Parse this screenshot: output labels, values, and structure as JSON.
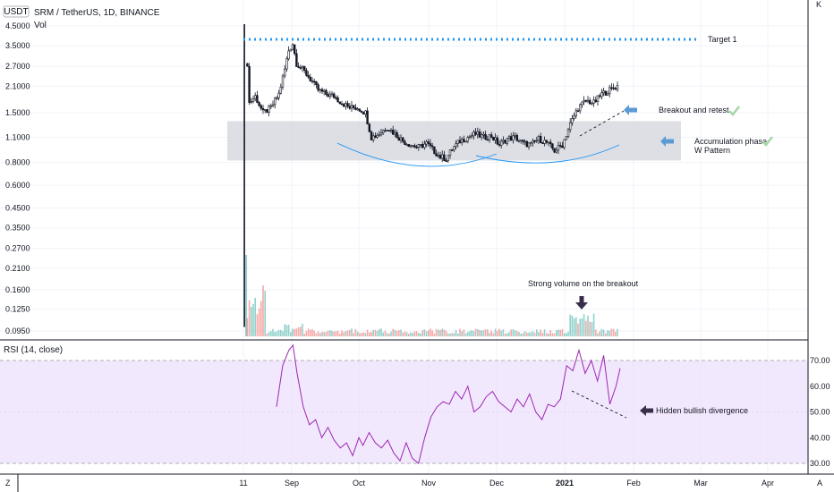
{
  "header": {
    "currency_badge": "USDT",
    "symbol_title": "SRM / TetherUS, 1D, BINANCE",
    "volume_label": "Vol",
    "rsi_label": "RSI (14, close)",
    "corner_left": "Z",
    "corner_right": "A",
    "top_right_glyph": "K"
  },
  "colors": {
    "up": "#26a69a",
    "down": "#ef5350",
    "candle": "#131722",
    "target_line": "#2196f3",
    "zone": "#d1d4dc",
    "w_curve": "#2196f3",
    "rsi_line": "#9c27b0",
    "rsi_band": "#ede0fc",
    "arrow_blue": "#5b9bd5",
    "arrow_dark": "#3a2d4a",
    "check": "#a5d6a7"
  },
  "annotations": {
    "target": "Target 1",
    "breakout": "Breakout and retest",
    "accum_1": "Accumulation phase",
    "accum_2": "W Pattern",
    "volume": "Strong volume on the breakout",
    "divergence": "Hidden bullish divergence"
  },
  "chart_data": [
    {
      "type": "candlestick",
      "title": "SRM / TetherUS, 1D, BINANCE",
      "scale": "log",
      "price_ticks": [
        4.5,
        3.5,
        2.7,
        2.1,
        1.5,
        1.1,
        0.8,
        0.6,
        0.45,
        0.35,
        0.27,
        0.21,
        0.16,
        0.125,
        0.095
      ],
      "price_tick_labels": [
        "4.5000",
        "3.5000",
        "2.7000",
        "2.1000",
        "1.5000",
        "1.1000",
        "0.8000",
        "0.6000",
        "0.4500",
        "0.3500",
        "0.2700",
        "0.2100",
        "0.1600",
        "0.1250",
        "0.0950"
      ],
      "x_tick_labels": [
        "11",
        "Sep",
        "Oct",
        "Nov",
        "Dec",
        "2021",
        "Feb",
        "Mar",
        "Apr"
      ],
      "target_price": 3.8,
      "accumulation_zone": [
        0.82,
        1.35
      ],
      "price_path": [
        [
          0,
          0.1
        ],
        [
          1,
          4.6
        ],
        [
          3,
          1.7
        ],
        [
          6,
          1.85
        ],
        [
          10,
          1.5
        ],
        [
          14,
          1.6
        ],
        [
          18,
          1.9
        ],
        [
          21,
          2.6
        ],
        [
          23,
          3.3
        ],
        [
          25,
          3.6
        ],
        [
          27,
          2.8
        ],
        [
          30,
          2.6
        ],
        [
          34,
          2.3
        ],
        [
          38,
          2.0
        ],
        [
          42,
          1.9
        ],
        [
          46,
          1.85
        ],
        [
          50,
          1.7
        ],
        [
          54,
          1.6
        ],
        [
          58,
          1.6
        ],
        [
          62,
          1.5
        ],
        [
          65,
          1.1
        ],
        [
          69,
          1.15
        ],
        [
          73,
          1.25
        ],
        [
          77,
          1.15
        ],
        [
          81,
          1.05
        ],
        [
          85,
          1.0
        ],
        [
          89,
          0.97
        ],
        [
          93,
          1.02
        ],
        [
          97,
          0.92
        ],
        [
          100,
          0.86
        ],
        [
          103,
          0.84
        ],
        [
          106,
          0.95
        ],
        [
          110,
          1.05
        ],
        [
          114,
          1.1
        ],
        [
          118,
          1.15
        ],
        [
          122,
          1.1
        ],
        [
          126,
          1.12
        ],
        [
          130,
          1.0
        ],
        [
          134,
          1.08
        ],
        [
          138,
          1.1
        ],
        [
          142,
          1.02
        ],
        [
          146,
          1.0
        ],
        [
          150,
          1.08
        ],
        [
          154,
          1.03
        ],
        [
          158,
          0.93
        ],
        [
          162,
          1.0
        ],
        [
          166,
          1.3
        ],
        [
          170,
          1.6
        ],
        [
          174,
          1.75
        ],
        [
          178,
          1.7
        ],
        [
          182,
          1.9
        ],
        [
          186,
          2.0
        ],
        [
          190,
          2.1
        ]
      ]
    },
    {
      "type": "line",
      "title": "RSI (14, close)",
      "y_ticks": [
        70,
        60,
        50,
        40,
        30
      ],
      "y_tick_labels": [
        "70.00",
        "60.00",
        "50.00",
        "40.00",
        "30.00"
      ],
      "band": [
        30,
        70
      ],
      "series": [
        {
          "values": [
            [
              0,
              52
            ],
            [
              3,
              68
            ],
            [
              6,
              74
            ],
            [
              8,
              76
            ],
            [
              10,
              65
            ],
            [
              13,
              52
            ],
            [
              16,
              45
            ],
            [
              19,
              47
            ],
            [
              22,
              40
            ],
            [
              25,
              44
            ],
            [
              28,
              39
            ],
            [
              31,
              36
            ],
            [
              34,
              38
            ],
            [
              37,
              33
            ],
            [
              40,
              40
            ],
            [
              42,
              37
            ],
            [
              45,
              42
            ],
            [
              48,
              38
            ],
            [
              51,
              36
            ],
            [
              54,
              39
            ],
            [
              57,
              34
            ],
            [
              60,
              31
            ],
            [
              63,
              38
            ],
            [
              66,
              32
            ],
            [
              69,
              30
            ],
            [
              72,
              40
            ],
            [
              75,
              48
            ],
            [
              78,
              52
            ],
            [
              81,
              54
            ],
            [
              84,
              53
            ],
            [
              87,
              58
            ],
            [
              90,
              55
            ],
            [
              93,
              60
            ],
            [
              96,
              50
            ],
            [
              99,
              52
            ],
            [
              102,
              56
            ],
            [
              105,
              58
            ],
            [
              108,
              54
            ],
            [
              111,
              52
            ],
            [
              114,
              50
            ],
            [
              117,
              55
            ],
            [
              120,
              52
            ],
            [
              123,
              57
            ],
            [
              126,
              50
            ],
            [
              129,
              47
            ],
            [
              132,
              53
            ],
            [
              135,
              52
            ],
            [
              138,
              55
            ],
            [
              141,
              68
            ],
            [
              144,
              66
            ],
            [
              147,
              74
            ],
            [
              150,
              65
            ],
            [
              153,
              70
            ],
            [
              156,
              62
            ],
            [
              159,
              72
            ],
            [
              162,
              53
            ],
            [
              165,
              60
            ],
            [
              167,
              67
            ]
          ]
        }
      ]
    }
  ]
}
